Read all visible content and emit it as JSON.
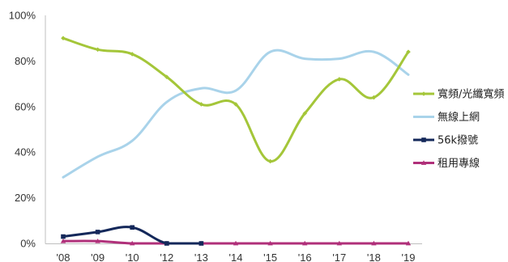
{
  "chart_data": {
    "type": "line",
    "title": "",
    "xlabel": "",
    "ylabel": "",
    "x": [
      "'08",
      "'09",
      "'10",
      "'12",
      "'13",
      "'14",
      "'15",
      "'16",
      "'17",
      "'18",
      "'19"
    ],
    "y_ticks": [
      "0%",
      "20%",
      "40%",
      "60%",
      "80%",
      "100%"
    ],
    "ylim": [
      0,
      100
    ],
    "grid": false,
    "legend_position": "right",
    "smooth": true,
    "series": [
      {
        "name": "寬頻/光纖寬頻",
        "color": "#a4c639",
        "marker": "diamond",
        "values": [
          90,
          85,
          83,
          73,
          61,
          61,
          36,
          57,
          72,
          64,
          84
        ]
      },
      {
        "name": "無線上網",
        "color": "#a9d3ea",
        "marker": "none",
        "values": [
          29,
          38,
          45,
          62,
          68,
          67,
          84,
          81,
          81,
          84,
          74
        ]
      },
      {
        "name": "56k撥號",
        "color": "#14285a",
        "marker": "square",
        "values": [
          3,
          5,
          7,
          0,
          0,
          null,
          null,
          null,
          null,
          null,
          null
        ]
      },
      {
        "name": "租用專線",
        "color": "#b0307a",
        "marker": "triangle",
        "values": [
          1,
          1,
          0,
          0,
          0,
          0,
          0,
          0,
          0,
          0,
          0
        ]
      }
    ]
  }
}
